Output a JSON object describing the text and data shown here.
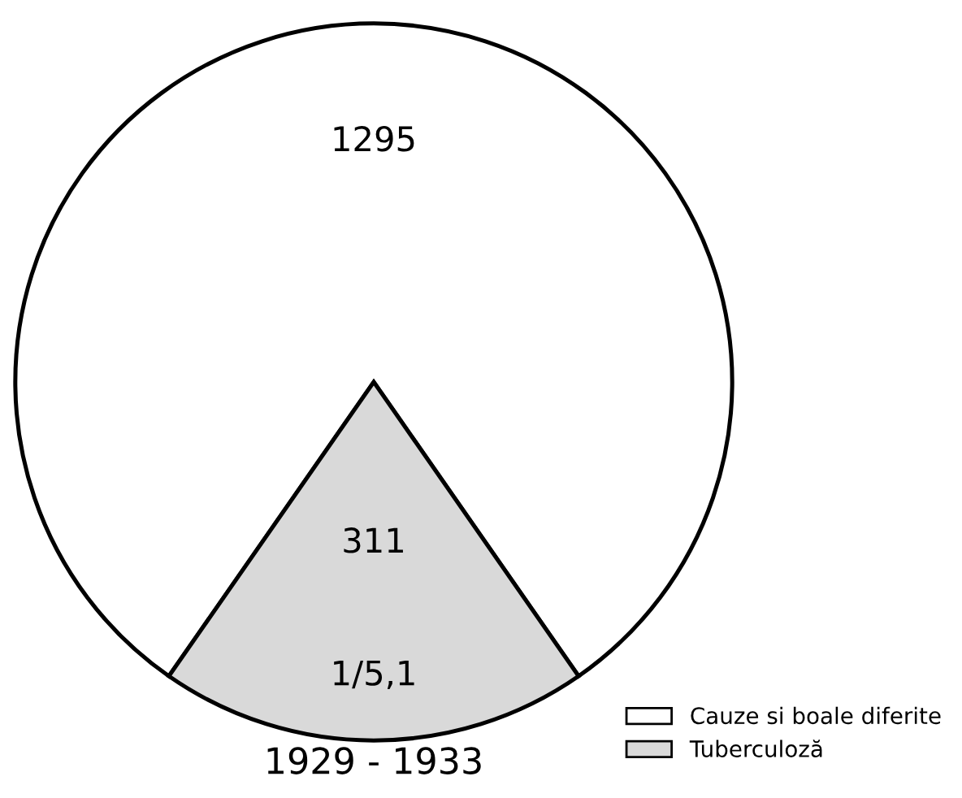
{
  "chart_data": {
    "type": "pie",
    "title": "1929 - 1933",
    "categories": [
      "Cauze si boale diferite",
      "Tuberculoză"
    ],
    "values": [
      1295,
      311
    ],
    "colors": [
      "#ffffff",
      "#d9d9d9"
    ],
    "data_labels": true,
    "annotations": [
      "1/5,1"
    ],
    "legend": "bottom right"
  }
}
